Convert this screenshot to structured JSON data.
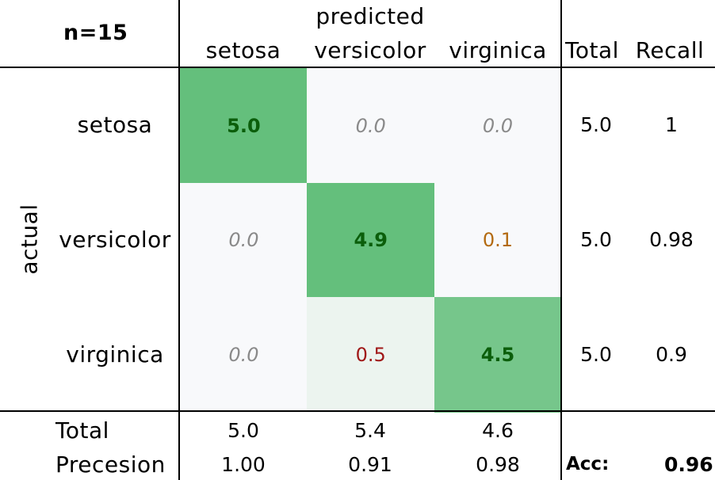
{
  "chart_data": {
    "type": "heatmap",
    "sample_label": "n=15",
    "xlabel": "predicted",
    "ylabel": "actual",
    "categories": [
      "setosa",
      "versicolor",
      "virginica"
    ],
    "matrix": [
      [
        "5.0",
        "0.0",
        "0.0"
      ],
      [
        "0.0",
        "4.9",
        "0.1"
      ],
      [
        "0.0",
        "0.5",
        "4.5"
      ]
    ],
    "matrix_values": [
      [
        5.0,
        0.0,
        0.0
      ],
      [
        0.0,
        4.9,
        0.1
      ],
      [
        0.0,
        0.5,
        4.5
      ]
    ],
    "total_header": "Total",
    "recall_header": "Recall",
    "row_totals": [
      "5.0",
      "5.0",
      "5.0"
    ],
    "recall": [
      "1",
      "0.98",
      "0.9"
    ],
    "bottom_total_label": "Total",
    "precision_label": "Precesion",
    "col_totals": [
      "5.0",
      "5.4",
      "4.6"
    ],
    "precision": [
      "1.00",
      "0.91",
      "0.98"
    ],
    "accuracy_label": "Acc:",
    "accuracy": "0.96",
    "colors": {
      "high": "#64bf7c",
      "diag3": "#76c68b",
      "zero": "#f8f9fb",
      "light_green": "#ecf4ef",
      "diag_text": "#0b5e0b",
      "zero_text": "#8a8a8a",
      "low_text": "#b36a10",
      "mid_text": "#a01818"
    }
  }
}
